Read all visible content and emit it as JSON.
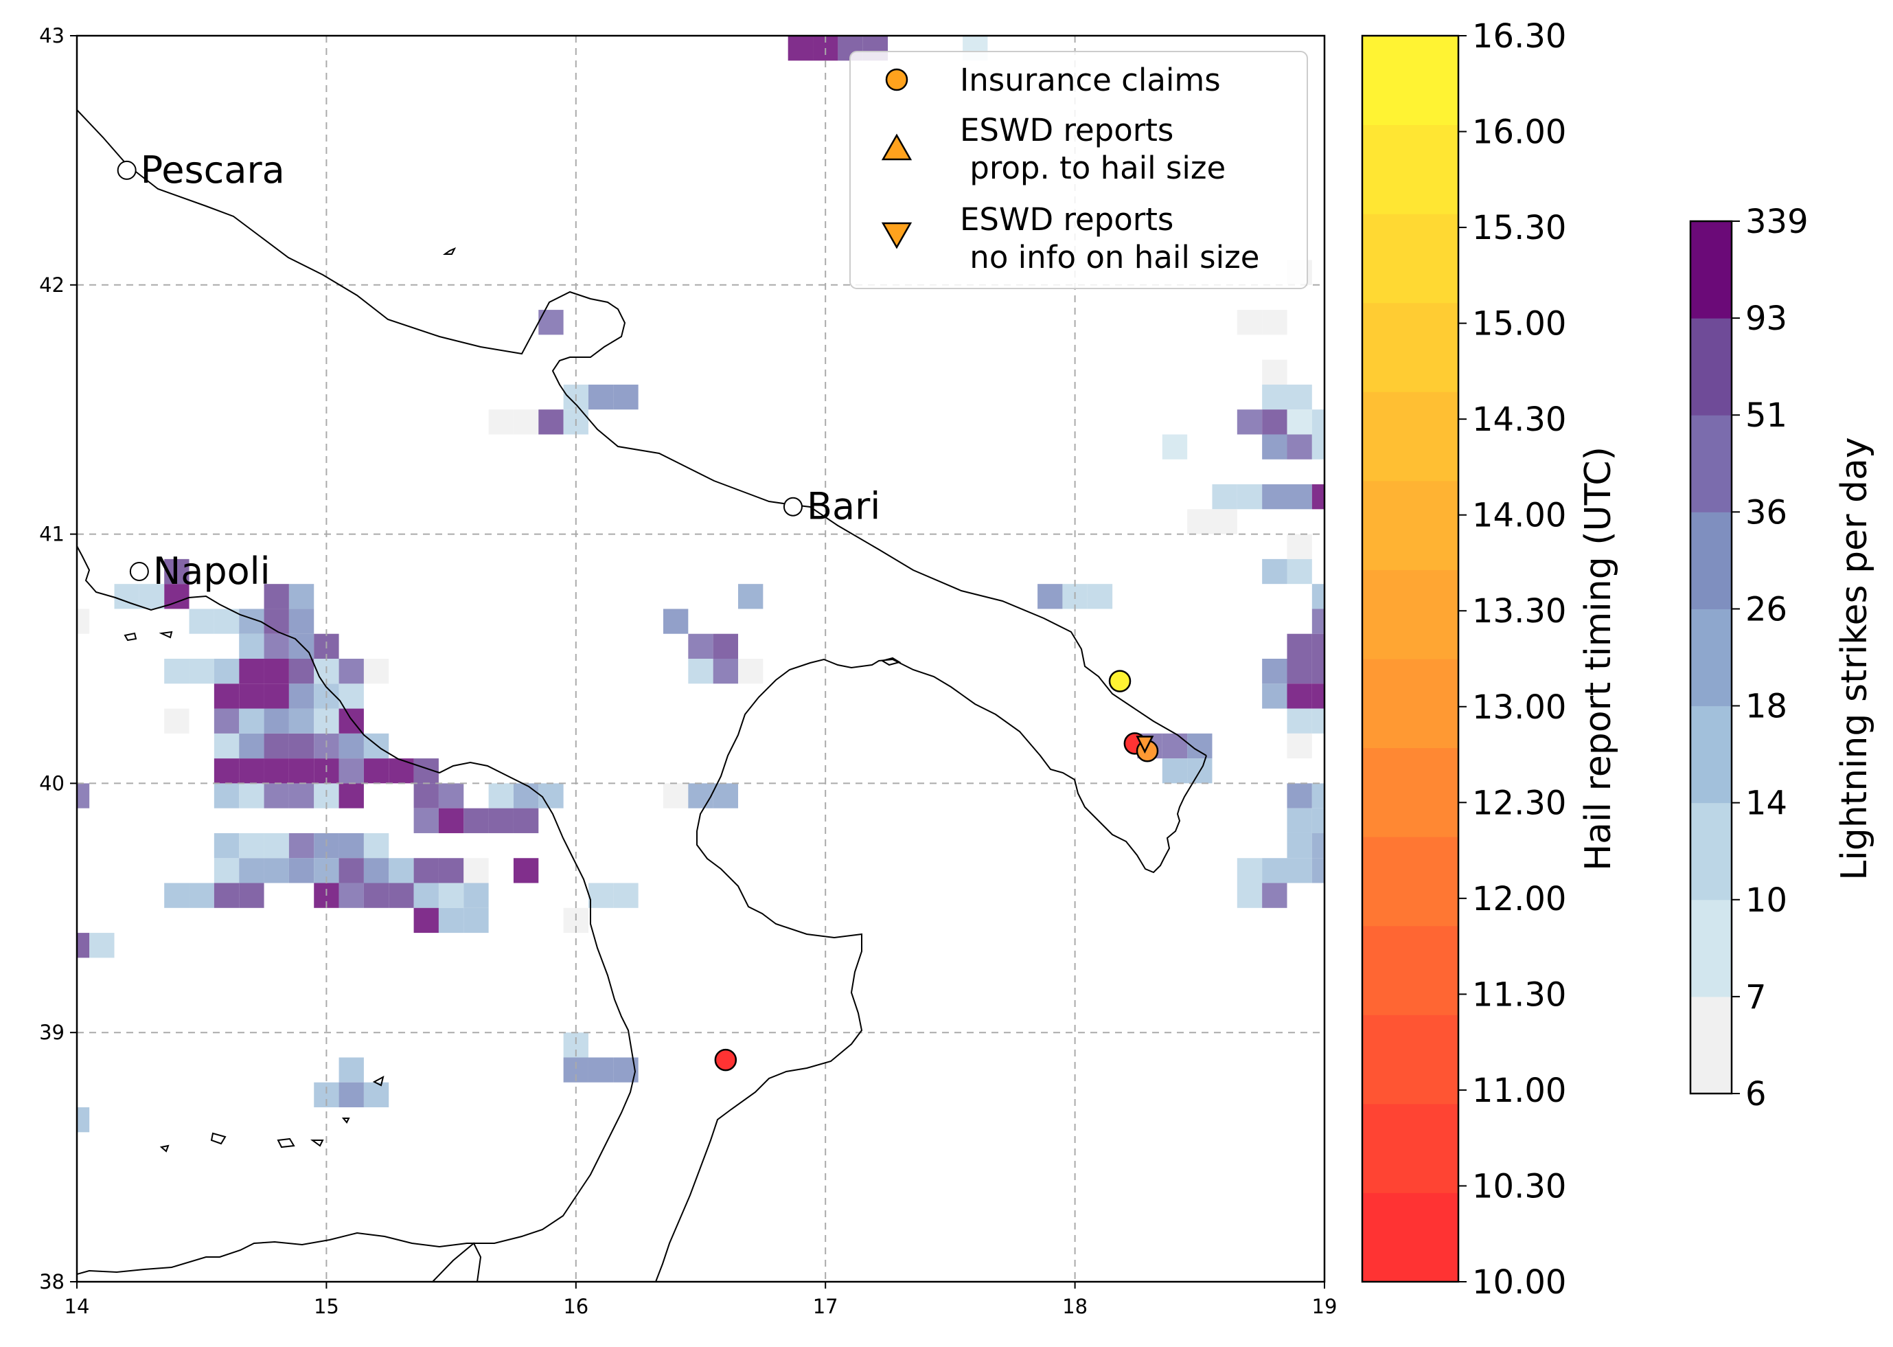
{
  "map": {
    "type": "heatmap",
    "xlim": [
      14,
      19
    ],
    "ylim": [
      38,
      43
    ],
    "x_ticks": [
      "14",
      "15",
      "16",
      "17",
      "18",
      "19"
    ],
    "y_ticks": [
      "38",
      "39",
      "40",
      "41",
      "42",
      "43"
    ],
    "grid": true,
    "cities": [
      {
        "name": "Pescara",
        "lon": 14.2,
        "lat": 42.46
      },
      {
        "name": "Napoli",
        "lon": 14.25,
        "lat": 40.85
      },
      {
        "name": "Bari",
        "lon": 16.87,
        "lat": 41.11
      }
    ]
  },
  "chart_data": {
    "type": "heatmap",
    "xlim": [
      14,
      19
    ],
    "ylim": [
      38,
      43
    ],
    "cell_size_deg": 0.1,
    "lightning_cells": [
      [
        16.9,
        42.95,
        339
      ],
      [
        17.0,
        42.95,
        339
      ],
      [
        17.1,
        42.95,
        51
      ],
      [
        17.2,
        42.95,
        51
      ],
      [
        17.6,
        42.95,
        7
      ],
      [
        15.9,
        41.85,
        36
      ],
      [
        16.0,
        41.55,
        10
      ],
      [
        16.1,
        41.55,
        26
      ],
      [
        16.2,
        41.55,
        26
      ],
      [
        15.7,
        41.45,
        6
      ],
      [
        15.8,
        41.45,
        6
      ],
      [
        15.9,
        41.45,
        51
      ],
      [
        16.0,
        41.45,
        10
      ],
      [
        18.9,
        42.05,
        6
      ],
      [
        18.7,
        41.85,
        6
      ],
      [
        18.8,
        41.85,
        6
      ],
      [
        18.8,
        41.65,
        6
      ],
      [
        18.8,
        41.55,
        10
      ],
      [
        18.9,
        41.55,
        10
      ],
      [
        18.7,
        41.45,
        36
      ],
      [
        18.8,
        41.45,
        51
      ],
      [
        18.9,
        41.45,
        7
      ],
      [
        19.0,
        41.45,
        10
      ],
      [
        18.4,
        41.35,
        7
      ],
      [
        18.8,
        41.35,
        26
      ],
      [
        18.9,
        41.35,
        36
      ],
      [
        19.0,
        41.35,
        10
      ],
      [
        18.6,
        41.15,
        10
      ],
      [
        18.7,
        41.15,
        10
      ],
      [
        18.8,
        41.15,
        26
      ],
      [
        18.9,
        41.15,
        26
      ],
      [
        19.0,
        41.15,
        93
      ],
      [
        18.5,
        41.05,
        6
      ],
      [
        18.6,
        41.05,
        6
      ],
      [
        18.8,
        40.85,
        14
      ],
      [
        18.9,
        40.85,
        10
      ],
      [
        18.9,
        40.95,
        6
      ],
      [
        19.0,
        40.75,
        14
      ],
      [
        19.0,
        40.65,
        36
      ],
      [
        18.9,
        40.55,
        51
      ],
      [
        19.0,
        40.55,
        51
      ],
      [
        18.8,
        40.45,
        26
      ],
      [
        18.9,
        40.45,
        51
      ],
      [
        19.0,
        40.45,
        51
      ],
      [
        18.8,
        40.35,
        18
      ],
      [
        18.9,
        40.35,
        93
      ],
      [
        19.0,
        40.35,
        93
      ],
      [
        18.9,
        40.25,
        10
      ],
      [
        19.0,
        40.25,
        10
      ],
      [
        18.9,
        40.15,
        6
      ],
      [
        18.9,
        39.95,
        26
      ],
      [
        19.0,
        39.95,
        14
      ],
      [
        18.9,
        39.85,
        14
      ],
      [
        19.0,
        39.85,
        14
      ],
      [
        18.9,
        39.75,
        14
      ],
      [
        19.0,
        39.75,
        18
      ],
      [
        18.7,
        39.65,
        10
      ],
      [
        18.8,
        39.65,
        14
      ],
      [
        18.9,
        39.65,
        14
      ],
      [
        19.0,
        39.65,
        18
      ],
      [
        18.7,
        39.55,
        10
      ],
      [
        18.8,
        39.55,
        36
      ],
      [
        17.9,
        40.75,
        26
      ],
      [
        18.0,
        40.75,
        10
      ],
      [
        18.1,
        40.75,
        10
      ],
      [
        18.3,
        40.15,
        36
      ],
      [
        18.4,
        40.15,
        36
      ],
      [
        18.5,
        40.15,
        26
      ],
      [
        18.4,
        40.05,
        14
      ],
      [
        18.5,
        40.05,
        14
      ],
      [
        16.4,
        40.65,
        26
      ],
      [
        16.5,
        40.55,
        36
      ],
      [
        16.6,
        40.55,
        51
      ],
      [
        16.5,
        40.45,
        10
      ],
      [
        16.6,
        40.45,
        36
      ],
      [
        16.7,
        40.45,
        6
      ],
      [
        16.7,
        40.75,
        18
      ],
      [
        16.4,
        39.95,
        6
      ],
      [
        16.5,
        39.95,
        18
      ],
      [
        16.6,
        39.95,
        18
      ],
      [
        16.0,
        39.45,
        6
      ],
      [
        16.1,
        39.55,
        10
      ],
      [
        16.2,
        39.55,
        10
      ],
      [
        16.0,
        38.95,
        10
      ],
      [
        16.0,
        38.85,
        26
      ],
      [
        16.1,
        38.85,
        26
      ],
      [
        16.2,
        38.85,
        26
      ],
      [
        15.1,
        38.85,
        14
      ],
      [
        15.0,
        38.75,
        14
      ],
      [
        15.1,
        38.75,
        26
      ],
      [
        15.2,
        38.75,
        14
      ],
      [
        14.0,
        38.65,
        14
      ],
      [
        14.0,
        39.35,
        51
      ],
      [
        14.1,
        39.35,
        10
      ],
      [
        14.4,
        39.55,
        14
      ],
      [
        14.5,
        39.55,
        14
      ],
      [
        14.6,
        39.55,
        51
      ],
      [
        14.7,
        39.55,
        51
      ],
      [
        14.6,
        39.65,
        10
      ],
      [
        14.7,
        39.65,
        18
      ],
      [
        14.8,
        39.65,
        18
      ],
      [
        14.6,
        39.75,
        14
      ],
      [
        14.7,
        39.75,
        10
      ],
      [
        14.8,
        39.75,
        10
      ],
      [
        14.9,
        39.75,
        36
      ],
      [
        15.0,
        39.75,
        26
      ],
      [
        15.1,
        39.75,
        26
      ],
      [
        15.2,
        39.75,
        10
      ],
      [
        14.9,
        39.65,
        26
      ],
      [
        15.0,
        39.65,
        18
      ],
      [
        15.1,
        39.65,
        51
      ],
      [
        15.2,
        39.65,
        26
      ],
      [
        15.3,
        39.65,
        14
      ],
      [
        15.4,
        39.65,
        51
      ],
      [
        15.5,
        39.65,
        51
      ],
      [
        15.6,
        39.65,
        6
      ],
      [
        15.8,
        39.65,
        93
      ],
      [
        15.0,
        39.55,
        93
      ],
      [
        15.1,
        39.55,
        36
      ],
      [
        15.2,
        39.55,
        51
      ],
      [
        15.3,
        39.55,
        51
      ],
      [
        15.4,
        39.55,
        14
      ],
      [
        15.5,
        39.55,
        10
      ],
      [
        15.6,
        39.55,
        14
      ],
      [
        15.4,
        39.45,
        93
      ],
      [
        15.5,
        39.45,
        14
      ],
      [
        15.6,
        39.45,
        14
      ],
      [
        14.0,
        39.95,
        36
      ],
      [
        14.6,
        39.95,
        14
      ],
      [
        14.7,
        39.95,
        10
      ],
      [
        14.8,
        39.95,
        36
      ],
      [
        14.9,
        39.95,
        36
      ],
      [
        15.0,
        39.95,
        10
      ],
      [
        15.1,
        39.95,
        93
      ],
      [
        15.4,
        39.95,
        51
      ],
      [
        15.5,
        39.95,
        36
      ],
      [
        15.7,
        39.95,
        10
      ],
      [
        15.8,
        39.95,
        18
      ],
      [
        15.9,
        39.95,
        14
      ],
      [
        15.4,
        39.85,
        36
      ],
      [
        15.5,
        39.85,
        93
      ],
      [
        15.6,
        39.85,
        51
      ],
      [
        15.7,
        39.85,
        51
      ],
      [
        15.8,
        39.85,
        51
      ],
      [
        14.6,
        40.05,
        339
      ],
      [
        14.7,
        40.05,
        339
      ],
      [
        14.8,
        40.05,
        339
      ],
      [
        14.9,
        40.05,
        93
      ],
      [
        15.0,
        40.05,
        93
      ],
      [
        15.1,
        40.05,
        36
      ],
      [
        15.2,
        40.05,
        339
      ],
      [
        15.3,
        40.05,
        339
      ],
      [
        15.4,
        40.05,
        51
      ],
      [
        14.6,
        40.15,
        10
      ],
      [
        14.7,
        40.15,
        26
      ],
      [
        14.8,
        40.15,
        51
      ],
      [
        14.9,
        40.15,
        51
      ],
      [
        15.0,
        40.15,
        36
      ],
      [
        15.1,
        40.15,
        26
      ],
      [
        15.2,
        40.15,
        14
      ],
      [
        14.6,
        40.25,
        36
      ],
      [
        14.7,
        40.25,
        14
      ],
      [
        14.8,
        40.25,
        26
      ],
      [
        14.9,
        40.25,
        18
      ],
      [
        15.0,
        40.25,
        10
      ],
      [
        15.1,
        40.25,
        339
      ],
      [
        14.6,
        40.35,
        339
      ],
      [
        14.7,
        40.35,
        339
      ],
      [
        14.8,
        40.35,
        339
      ],
      [
        14.9,
        40.35,
        26
      ],
      [
        15.0,
        40.35,
        14
      ],
      [
        15.1,
        40.35,
        10
      ],
      [
        14.4,
        40.25,
        6
      ],
      [
        14.7,
        40.45,
        339
      ],
      [
        14.8,
        40.45,
        339
      ],
      [
        14.9,
        40.45,
        51
      ],
      [
        15.0,
        40.45,
        10
      ],
      [
        15.1,
        40.45,
        36
      ],
      [
        14.4,
        40.45,
        10
      ],
      [
        14.5,
        40.45,
        10
      ],
      [
        14.6,
        40.45,
        14
      ],
      [
        15.2,
        40.45,
        6
      ],
      [
        14.7,
        40.55,
        14
      ],
      [
        14.8,
        40.55,
        36
      ],
      [
        14.9,
        40.55,
        26
      ],
      [
        15.0,
        40.55,
        51
      ],
      [
        14.5,
        40.65,
        10
      ],
      [
        14.6,
        40.65,
        10
      ],
      [
        14.7,
        40.65,
        18
      ],
      [
        14.8,
        40.65,
        51
      ],
      [
        14.9,
        40.65,
        26
      ],
      [
        14.8,
        40.75,
        51
      ],
      [
        14.9,
        40.75,
        18
      ],
      [
        14.4,
        40.75,
        339
      ],
      [
        14.3,
        40.75,
        10
      ],
      [
        14.2,
        40.75,
        10
      ],
      [
        14.0,
        40.65,
        6
      ],
      [
        14.4,
        40.85,
        51
      ]
    ],
    "insurance_claims": [
      {
        "lon": 18.18,
        "lat": 40.41,
        "time": 16.3
      },
      {
        "lon": 18.24,
        "lat": 40.16,
        "time": 10.0
      },
      {
        "lon": 18.29,
        "lat": 40.13,
        "time": 13.0
      },
      {
        "lon": 16.6,
        "lat": 38.89,
        "time": 10.0
      }
    ],
    "eswd_no_size": [
      {
        "lon": 18.28,
        "lat": 40.16,
        "time": 13.0
      }
    ],
    "hail_colorbar": {
      "label": "Hail report timing (UTC)",
      "ticks": [
        "10.00",
        "10.30",
        "11.00",
        "11.30",
        "12.00",
        "12.30",
        "13.00",
        "13.30",
        "14.00",
        "14.30",
        "15.00",
        "15.30",
        "16.00",
        "16.30"
      ],
      "colors": [
        "#ff3333",
        "#ff4433",
        "#ff5533",
        "#ff6633",
        "#ff7733",
        "#ff8833",
        "#ff9933",
        "#ffa633",
        "#ffb333",
        "#ffbf33",
        "#ffcc33",
        "#ffd933",
        "#ffe633",
        "#fff333"
      ]
    },
    "lightning_colorbar": {
      "label": "Lightning strikes per day",
      "ticks": [
        "6",
        "7",
        "10",
        "14",
        "18",
        "26",
        "36",
        "51",
        "93",
        "339"
      ],
      "bounds": [
        6,
        7,
        10,
        14,
        18,
        26,
        36,
        51,
        93,
        339
      ],
      "colors": [
        "#f0f0f0",
        "#d2e6ee",
        "#bcd6e6",
        "#a2c0db",
        "#8ea7cd",
        "#7f8fbf",
        "#7b6cad",
        "#6f4b98",
        "#6b0a78"
      ]
    },
    "legend": {
      "position": "top-right",
      "entries": [
        {
          "marker": "circle",
          "color": "#ffa21d",
          "label": "Insurance claims"
        },
        {
          "marker": "triangle-up",
          "color": "#ffa21d",
          "label": "ESWD reports\n prop. to hail size"
        },
        {
          "marker": "triangle-down",
          "color": "#ffa21d",
          "label": "ESWD reports\n no info on hail size"
        }
      ]
    }
  }
}
